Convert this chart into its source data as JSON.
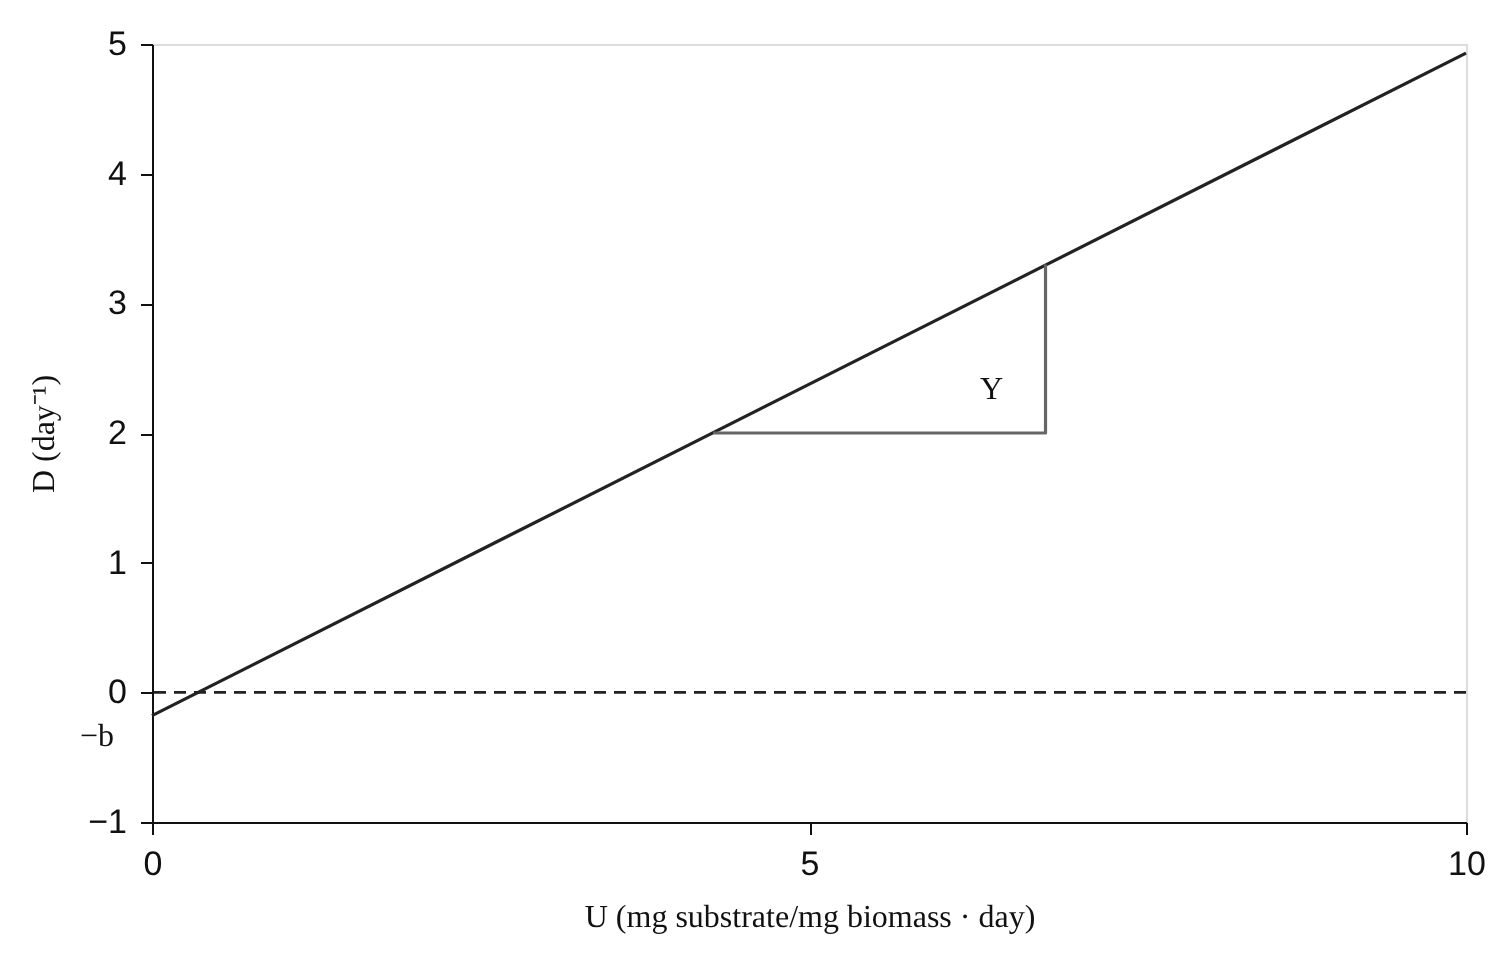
{
  "chart_data": {
    "type": "line",
    "xlabel": "U (mg substrate/mg biomass · day)",
    "ylabel": "D (day⁻¹)",
    "xlim": [
      0,
      10
    ],
    "ylim": [
      -1,
      5
    ],
    "xticks": [
      0,
      5,
      10
    ],
    "yticks": [
      -1,
      0,
      1,
      2,
      3,
      4,
      5
    ],
    "grid": false,
    "marker": "none",
    "series": [
      {
        "color": "#222222",
        "x": [
          0,
          10
        ],
        "values": [
          -0.18,
          4.93
        ]
      },
      {
        "color": "#666666",
        "x": [
          4.27,
          6.8,
          6.8
        ],
        "values": [
          2,
          2,
          3.3
        ]
      }
    ],
    "ref_lines": [
      {
        "axis": "y",
        "value": 0,
        "line_style": "dashed",
        "color": "#222222"
      }
    ],
    "annotations": [
      {
        "text": "Y",
        "x": 6.8,
        "y": 2
      },
      {
        "text": "−b",
        "x": 0,
        "y": -0.18
      }
    ]
  }
}
